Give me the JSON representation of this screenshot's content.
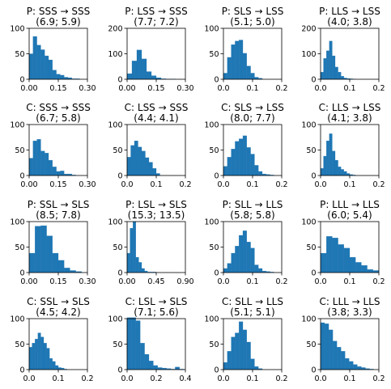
{
  "chart_data": [
    {
      "type": "bar",
      "title_line1": "P: SSS → SSS",
      "title_line2": "(6.9; 5.9)",
      "xlim": [
        0,
        0.3
      ],
      "ylim": [
        0,
        100
      ],
      "xticks": [
        "0.00",
        "0.15",
        "0.30"
      ],
      "yticks": [
        "0",
        "50",
        "100"
      ],
      "bin_edges": [
        0.0,
        0.02,
        0.04,
        0.06,
        0.08,
        0.1,
        0.12,
        0.14,
        0.16,
        0.18,
        0.2,
        0.22,
        0.24,
        0.26
      ],
      "values": [
        50,
        84,
        67,
        58,
        46,
        38,
        18,
        10,
        8,
        4,
        3,
        1,
        1
      ]
    },
    {
      "type": "bar",
      "title_line1": "P: LSS → SSS",
      "title_line2": "(7.7; 7.2)",
      "xlim": [
        0,
        0.3
      ],
      "ylim": [
        0,
        200
      ],
      "xticks": [
        "0.00",
        "0.15",
        "0.30"
      ],
      "yticks": [
        "0",
        "100",
        "200"
      ],
      "bin_edges": [
        0.0,
        0.025,
        0.05,
        0.075,
        0.1,
        0.125,
        0.15,
        0.175,
        0.2,
        0.225,
        0.25
      ],
      "values": [
        22,
        72,
        115,
        80,
        30,
        14,
        6,
        2,
        1,
        1
      ]
    },
    {
      "type": "bar",
      "title_line1": "P: SLS → LSS",
      "title_line2": "(5.1; 5.0)",
      "xlim": [
        0,
        0.2
      ],
      "ylim": [
        0,
        100
      ],
      "xticks": [
        "0.0",
        "0.1",
        "0.2"
      ],
      "yticks": [
        "0",
        "50",
        "100"
      ],
      "bin_edges": [
        0.0,
        0.0133,
        0.0267,
        0.04,
        0.0533,
        0.0667,
        0.08,
        0.0933,
        0.1067,
        0.12,
        0.1333
      ],
      "values": [
        12,
        43,
        68,
        75,
        77,
        51,
        26,
        12,
        4,
        2
      ]
    },
    {
      "type": "bar",
      "title_line1": "P: LLS → LSS",
      "title_line2": "(4.0; 3.8)",
      "xlim": [
        0,
        0.2
      ],
      "ylim": [
        0,
        200
      ],
      "xticks": [
        "0.0",
        "0.1",
        "0.2"
      ],
      "yticks": [
        "0",
        "100",
        "200"
      ],
      "bin_edges": [
        0.0,
        0.01,
        0.02,
        0.03,
        0.04,
        0.05,
        0.06,
        0.07,
        0.08,
        0.09,
        0.1,
        0.11,
        0.12
      ],
      "values": [
        28,
        82,
        112,
        150,
        92,
        48,
        28,
        12,
        5,
        3,
        2,
        1
      ]
    },
    {
      "type": "bar",
      "title_line1": "C: SSS → SSS",
      "title_line2": "(6.7; 5.8)",
      "xlim": [
        0,
        0.3
      ],
      "ylim": [
        0,
        100
      ],
      "xticks": [
        "0.00",
        "0.15",
        "0.30"
      ],
      "yticks": [
        "0",
        "50",
        "100"
      ],
      "bin_edges": [
        0.0,
        0.02,
        0.04,
        0.06,
        0.08,
        0.1,
        0.12,
        0.14,
        0.16,
        0.18,
        0.2,
        0.22,
        0.24
      ],
      "values": [
        34,
        68,
        71,
        48,
        44,
        30,
        17,
        8,
        9,
        3,
        3,
        1
      ]
    },
    {
      "type": "bar",
      "title_line1": "C: LSS → SSS",
      "title_line2": "(4.4; 4.1)",
      "xlim": [
        0,
        0.2
      ],
      "ylim": [
        0,
        100
      ],
      "xticks": [
        "0.0",
        "0.1",
        "0.2"
      ],
      "yticks": [
        "0",
        "50",
        "100"
      ],
      "bin_edges": [
        0.0,
        0.0125,
        0.025,
        0.0375,
        0.05,
        0.0625,
        0.075,
        0.0875,
        0.1,
        0.1125
      ],
      "values": [
        36,
        59,
        68,
        56,
        48,
        35,
        26,
        14,
        4
      ]
    },
    {
      "type": "bar",
      "title_line1": "C: SLS → LSS",
      "title_line2": "(8.0; 7.7)",
      "xlim": [
        0,
        0.2
      ],
      "ylim": [
        0,
        100
      ],
      "xticks": [
        "0.0",
        "0.1",
        "0.2"
      ],
      "yticks": [
        "0",
        "50",
        "100"
      ],
      "bin_edges": [
        0.0,
        0.0133,
        0.0267,
        0.04,
        0.0533,
        0.0667,
        0.08,
        0.0933,
        0.1067,
        0.12,
        0.1333,
        0.1467,
        0.16,
        0.1733
      ],
      "values": [
        18,
        36,
        52,
        67,
        72,
        78,
        55,
        42,
        20,
        8,
        3,
        2,
        1
      ]
    },
    {
      "type": "bar",
      "title_line1": "C: LLS → LSS",
      "title_line2": "(4.1; 3.8)",
      "xlim": [
        0,
        0.2
      ],
      "ylim": [
        0,
        100
      ],
      "xticks": [
        "0.0",
        "0.1",
        "0.2"
      ],
      "yticks": [
        "0",
        "50",
        "100"
      ],
      "bin_edges": [
        0.0,
        0.01,
        0.02,
        0.03,
        0.04,
        0.05,
        0.06,
        0.07,
        0.08,
        0.09,
        0.1,
        0.11,
        0.12
      ],
      "values": [
        14,
        38,
        68,
        82,
        48,
        30,
        17,
        12,
        8,
        4,
        2,
        1
      ]
    },
    {
      "type": "bar",
      "title_line1": "P: SSL → SLS",
      "title_line2": "(8.5; 7.8)",
      "xlim": [
        0,
        0.3
      ],
      "ylim": [
        0,
        100
      ],
      "xticks": [
        "0.00",
        "0.15",
        "0.30"
      ],
      "yticks": [
        "0",
        "50",
        "100"
      ],
      "bin_edges": [
        0.0,
        0.03,
        0.06,
        0.09,
        0.12,
        0.15,
        0.18,
        0.21,
        0.24,
        0.27
      ],
      "values": [
        38,
        91,
        92,
        72,
        38,
        24,
        9,
        4,
        2
      ]
    },
    {
      "type": "bar",
      "title_line1": "P: LSL → SLS",
      "title_line2": "(15.3; 13.5)",
      "xlim": [
        0,
        0.9
      ],
      "ylim": [
        0,
        100
      ],
      "xticks": [
        "0.00",
        "0.45",
        "0.90"
      ],
      "yticks": [
        "0",
        "50",
        "100"
      ],
      "bin_edges": [
        0.0,
        0.045,
        0.09,
        0.135,
        0.18,
        0.225,
        0.27,
        0.315,
        0.36,
        0.405,
        0.45
      ],
      "values": [
        38,
        87,
        100,
        30,
        20,
        8,
        3,
        1,
        1,
        1
      ]
    },
    {
      "type": "bar",
      "title_line1": "P: SLL → LLS",
      "title_line2": "(5.8; 5.8)",
      "xlim": [
        0,
        0.2
      ],
      "ylim": [
        0,
        100
      ],
      "xticks": [
        "0.0",
        "0.1",
        "0.2"
      ],
      "yticks": [
        "0",
        "50",
        "100"
      ],
      "bin_edges": [
        0.0,
        0.0133,
        0.0267,
        0.04,
        0.0533,
        0.0667,
        0.08,
        0.0933,
        0.1067,
        0.12,
        0.1333,
        0.1467,
        0.16,
        0.1733
      ],
      "values": [
        8,
        18,
        38,
        52,
        73,
        82,
        60,
        48,
        15,
        8,
        3,
        2,
        1
      ]
    },
    {
      "type": "bar",
      "title_line1": "P: LLL → LLS",
      "title_line2": "(6.0; 5.4)",
      "xlim": [
        0,
        0.2
      ],
      "ylim": [
        0,
        100
      ],
      "xticks": [
        "0.0",
        "0.1",
        "0.2"
      ],
      "yticks": [
        "0",
        "50",
        "100"
      ],
      "bin_edges": [
        0.0,
        0.02,
        0.04,
        0.06,
        0.08,
        0.1,
        0.12,
        0.14,
        0.16,
        0.18,
        0.2
      ],
      "values": [
        38,
        71,
        68,
        55,
        48,
        30,
        20,
        14,
        6,
        4
      ]
    },
    {
      "type": "bar",
      "title_line1": "C: SSL → SLS",
      "title_line2": "(4.5; 4.2)",
      "xlim": [
        0,
        0.2
      ],
      "ylim": [
        0,
        100
      ],
      "xticks": [
        "0.0",
        "0.1",
        "0.2"
      ],
      "yticks": [
        "0",
        "50",
        "100"
      ],
      "bin_edges": [
        0.0,
        0.01,
        0.02,
        0.03,
        0.04,
        0.05,
        0.06,
        0.07,
        0.08,
        0.09,
        0.1,
        0.11,
        0.12,
        0.13
      ],
      "values": [
        44,
        52,
        60,
        72,
        64,
        52,
        42,
        22,
        16,
        8,
        4,
        3,
        1
      ]
    },
    {
      "type": "bar",
      "title_line1": "C: LSL → SLS",
      "title_line2": "(7.1; 5.6)",
      "xlim": [
        0,
        0.4
      ],
      "ylim": [
        0,
        100
      ],
      "xticks": [
        "0.0",
        "0.2",
        "0.4"
      ],
      "yticks": [
        "0",
        "50",
        "100"
      ],
      "bin_edges": [
        0.0,
        0.03,
        0.06,
        0.09,
        0.12,
        0.15,
        0.18,
        0.21,
        0.24,
        0.27,
        0.3,
        0.33,
        0.36,
        0.39
      ],
      "values": [
        121,
        118,
        96,
        52,
        30,
        17,
        8,
        4,
        3,
        2,
        1,
        5,
        1
      ]
    },
    {
      "type": "bar",
      "title_line1": "C: SLL → LLS",
      "title_line2": "(5.1; 5.1)",
      "xlim": [
        0,
        0.2
      ],
      "ylim": [
        0,
        100
      ],
      "xticks": [
        "0.0",
        "0.1",
        "0.2"
      ],
      "yticks": [
        "0",
        "50",
        "100"
      ],
      "bin_edges": [
        0.0,
        0.0133,
        0.0267,
        0.04,
        0.0533,
        0.0667,
        0.08,
        0.0933,
        0.1067,
        0.12,
        0.1333
      ],
      "values": [
        14,
        36,
        64,
        72,
        94,
        78,
        54,
        21,
        6,
        2
      ]
    },
    {
      "type": "bar",
      "title_line1": "C: LLL → LLS",
      "title_line2": "(3.8; 3.3)",
      "xlim": [
        0,
        0.2
      ],
      "ylim": [
        0,
        100
      ],
      "xticks": [
        "0.0",
        "0.1",
        "0.2"
      ],
      "yticks": [
        "0",
        "50",
        "100"
      ],
      "bin_edges": [
        0.0,
        0.014,
        0.028,
        0.042,
        0.056,
        0.07,
        0.084,
        0.098,
        0.112,
        0.126,
        0.14,
        0.154,
        0.168,
        0.182
      ],
      "values": [
        92,
        90,
        78,
        56,
        44,
        36,
        22,
        16,
        10,
        6,
        4,
        2,
        1
      ]
    }
  ]
}
